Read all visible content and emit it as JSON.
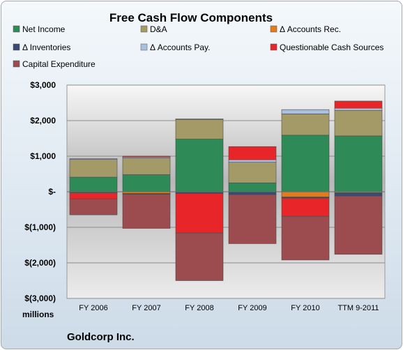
{
  "chart_data": {
    "type": "bar",
    "stacked": true,
    "title": "Free Cash Flow Components",
    "units_label": "millions",
    "company": "Goldcorp Inc.",
    "categories": [
      "FY 2006",
      "FY 2007",
      "FY 2008",
      "FY 2009",
      "FY 2010",
      "TTM 9-2011"
    ],
    "ylim": [
      -3000,
      3000
    ],
    "yticks": [
      3000,
      2000,
      1000,
      0,
      -1000,
      -2000,
      -3000
    ],
    "ytick_labels": [
      "$3,000",
      "$2,000",
      "$1,000",
      "$-",
      "$(1,000)",
      "$(2,000)",
      "$(3,000)"
    ],
    "grid": true,
    "legend_position": "top",
    "series": [
      {
        "name": "Net Income",
        "color": "#2e8b57",
        "values": [
          410,
          480,
          1480,
          250,
          1590,
          1570
        ]
      },
      {
        "name": "D&A",
        "color": "#a39a67",
        "values": [
          500,
          470,
          550,
          580,
          600,
          720
        ]
      },
      {
        "name": "Δ Accounts Rec.",
        "color": "#e07b1f",
        "values": [
          -20,
          -50,
          -20,
          -10,
          -150,
          -30
        ]
      },
      {
        "name": "Δ Inventories",
        "color": "#3a4a75",
        "values": [
          -10,
          -20,
          -30,
          -70,
          -30,
          -90
        ]
      },
      {
        "name": "Δ Accounts Pay.",
        "color": "#a9c0de",
        "values": [
          20,
          30,
          20,
          70,
          120,
          60
        ]
      },
      {
        "name": "Questionable Cash Sources",
        "color": "#e8262a",
        "values": [
          -170,
          20,
          -1110,
          370,
          -510,
          200
        ]
      },
      {
        "name": "Capital Expenditure",
        "color": "#9c4b4f",
        "values": [
          -450,
          -960,
          -1340,
          -1380,
          -1230,
          -1640
        ]
      }
    ]
  }
}
